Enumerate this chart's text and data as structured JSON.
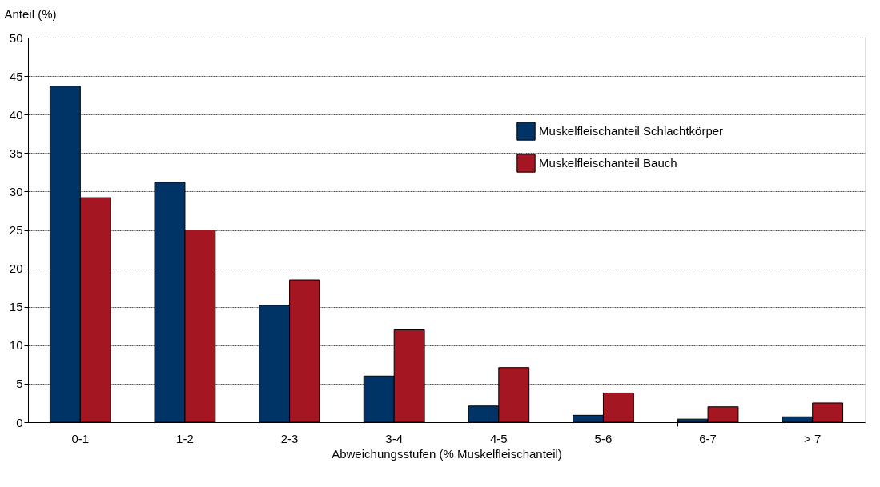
{
  "chart_data": {
    "type": "bar",
    "xlabel": "Abweichungsstufen (% Muskelfleischanteil)",
    "ylabel": "Anteil (%)",
    "categories": [
      "0-1",
      "1-2",
      "2-3",
      "3-4",
      "4-5",
      "5-6",
      "6-7",
      "> 7"
    ],
    "series": [
      {
        "name": "Muskelfleischanteil Schlachtkörper",
        "color": "#003366",
        "values": [
          43.7,
          31.2,
          15.2,
          6.0,
          2.1,
          0.9,
          0.4,
          0.7
        ]
      },
      {
        "name": "Muskelfleischanteil Bauch",
        "color": "#a31622",
        "values": [
          29.2,
          25.0,
          18.5,
          12.0,
          7.1,
          3.8,
          2.0,
          2.5
        ]
      }
    ],
    "ylim": [
      0,
      50
    ],
    "yticks": [
      0,
      5,
      10,
      15,
      20,
      25,
      30,
      35,
      40,
      45,
      50
    ],
    "grid": "y",
    "legend": "top right"
  }
}
